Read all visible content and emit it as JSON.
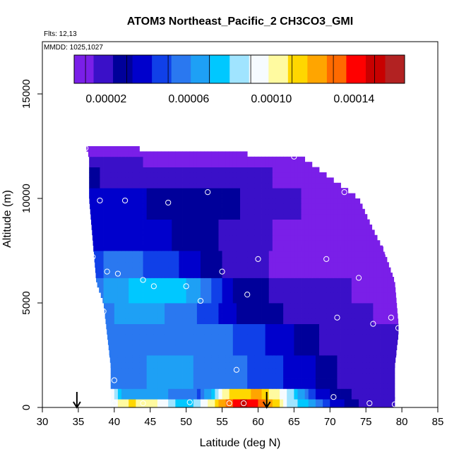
{
  "header": {
    "title": "ATOM3 Northeast_Pacific_2 CH3CO3_GMI",
    "flights": "Flts: 12,13",
    "dates": "MMDD: 1025,1027"
  },
  "colors": {
    "palette": [
      "#7a1fe8",
      "#3a10c8",
      "#00009a",
      "#0000cc",
      "#1040e8",
      "#2a78f0",
      "#1ea0f5",
      "#00c8ff",
      "#a0e4ff",
      "#f6fbff",
      "#fffaa0",
      "#ffd700",
      "#ffa500",
      "#ff6a00",
      "#ff0000",
      "#c80000",
      "#b22222"
    ],
    "arrow": "#000000",
    "marker": "#ffffff"
  },
  "chart_data": {
    "type": "heatmap",
    "title": "ATOM3 Northeast_Pacific_2 CH3CO3_GMI",
    "xlabel": "Latitude (deg N)",
    "ylabel": "Altitude (m)",
    "xlim": [
      30,
      85
    ],
    "ylim": [
      0,
      17500
    ],
    "xticks": [
      "30",
      "35",
      "40",
      "45",
      "50",
      "55",
      "60",
      "65",
      "70",
      "75",
      "80",
      "85"
    ],
    "yticks": [
      "0",
      "5000",
      "10000",
      "15000"
    ],
    "colorbar": {
      "range": [
        4.5e-06,
        0.0001645
      ],
      "ticks": [
        "0.00002",
        "0.00006",
        "0.00010",
        "0.00014"
      ],
      "tick_values": [
        2e-05,
        6e-05,
        0.0001,
        0.00014
      ]
    },
    "arrows_latitude": [
      34.8,
      61.2
    ],
    "observations": [
      {
        "lat": 36.0,
        "alt": 12400
      },
      {
        "lat": 65.0,
        "alt": 12000
      },
      {
        "lat": 38.0,
        "alt": 9900
      },
      {
        "lat": 41.5,
        "alt": 9900
      },
      {
        "lat": 47.5,
        "alt": 9800
      },
      {
        "lat": 53.0,
        "alt": 10300
      },
      {
        "lat": 72.0,
        "alt": 10300
      },
      {
        "lat": 37.0,
        "alt": 7200
      },
      {
        "lat": 60.0,
        "alt": 7100
      },
      {
        "lat": 69.5,
        "alt": 7100
      },
      {
        "lat": 78.0,
        "alt": 7400
      },
      {
        "lat": 39.0,
        "alt": 6500
      },
      {
        "lat": 40.5,
        "alt": 6400
      },
      {
        "lat": 55.0,
        "alt": 6500
      },
      {
        "lat": 44.0,
        "alt": 6100
      },
      {
        "lat": 74.0,
        "alt": 6200
      },
      {
        "lat": 45.5,
        "alt": 5800
      },
      {
        "lat": 50.0,
        "alt": 5800
      },
      {
        "lat": 58.5,
        "alt": 5400
      },
      {
        "lat": 52.0,
        "alt": 5100
      },
      {
        "lat": 38.5,
        "alt": 4600
      },
      {
        "lat": 71.0,
        "alt": 4300
      },
      {
        "lat": 78.5,
        "alt": 4300
      },
      {
        "lat": 76.0,
        "alt": 4000
      },
      {
        "lat": 79.5,
        "alt": 3800
      },
      {
        "lat": 57.0,
        "alt": 1800
      },
      {
        "lat": 40.0,
        "alt": 1300
      },
      {
        "lat": 70.5,
        "alt": 500
      },
      {
        "lat": 50.5,
        "alt": 250
      },
      {
        "lat": 40.0,
        "alt": 200
      },
      {
        "lat": 44.0,
        "alt": 200
      },
      {
        "lat": 56.0,
        "alt": 200
      },
      {
        "lat": 58.0,
        "alt": 200
      },
      {
        "lat": 75.5,
        "alt": 200
      },
      {
        "lat": 79.0,
        "alt": 150
      }
    ],
    "upper_edge": [
      [
        36,
        12500
      ],
      [
        65,
        12500
      ],
      [
        66,
        12000
      ],
      [
        68,
        11500
      ],
      [
        70,
        11000
      ],
      [
        72,
        10500
      ],
      [
        74,
        10000
      ],
      [
        76,
        8500
      ],
      [
        77.5,
        7500
      ],
      [
        79,
        6000
      ],
      [
        79.5,
        4000
      ],
      [
        79.5,
        3500
      ],
      [
        79,
        2000
      ],
      [
        79,
        0
      ]
    ],
    "lower_edge": [
      [
        36,
        12500
      ],
      [
        36.5,
        12000
      ],
      [
        36.5,
        10000
      ],
      [
        37,
        8000
      ],
      [
        37.5,
        6000
      ],
      [
        38.5,
        5000
      ],
      [
        39,
        3500
      ],
      [
        39.5,
        2000
      ],
      [
        39.5,
        1000
      ],
      [
        39.5,
        0
      ]
    ],
    "bands": [
      {
        "alt": [
          0,
          400
        ],
        "by_lat": [
          [
            39.5,
            9e-05
          ],
          [
            42,
            0.00011
          ],
          [
            46,
            0.0001
          ],
          [
            50,
            7e-05
          ],
          [
            53,
            0.0001
          ],
          [
            55,
            0.00012
          ],
          [
            58,
            0.00015
          ],
          [
            62,
            0.00012
          ],
          [
            64,
            9e-05
          ],
          [
            67,
            7e-05
          ],
          [
            70,
            4e-05
          ],
          [
            75,
            2e-05
          ],
          [
            79,
            1.5e-05
          ]
        ]
      },
      {
        "alt": [
          400,
          900
        ],
        "by_lat": [
          [
            39.5,
            0.0001
          ],
          [
            41,
            7e-05
          ],
          [
            48,
            6e-05
          ],
          [
            52,
            5e-05
          ],
          [
            56,
            0.00011
          ],
          [
            60,
            0.00012
          ],
          [
            64,
            9e-05
          ],
          [
            68,
            4e-05
          ],
          [
            72,
            2.5e-05
          ],
          [
            79,
            1.5e-05
          ]
        ]
      },
      {
        "alt": [
          900,
          2500
        ],
        "by_lat": [
          [
            39.5,
            6e-05
          ],
          [
            50,
            6.2e-05
          ],
          [
            60,
            5e-05
          ],
          [
            67,
            3.5e-05
          ],
          [
            72,
            2e-05
          ],
          [
            79,
            1.5e-05
          ]
        ]
      },
      {
        "alt": [
          2500,
          4000
        ],
        "by_lat": [
          [
            39,
            6e-05
          ],
          [
            50,
            5.8e-05
          ],
          [
            58,
            5e-05
          ],
          [
            64,
            3.5e-05
          ],
          [
            70,
            2e-05
          ],
          [
            79,
            1.5e-05
          ]
        ]
      },
      {
        "alt": [
          4000,
          5000
        ],
        "by_lat": [
          [
            38.5,
            6e-05
          ],
          [
            45,
            6.5e-05
          ],
          [
            52,
            5e-05
          ],
          [
            58,
            3e-05
          ],
          [
            66,
            2e-05
          ],
          [
            79,
            1.2e-05
          ]
        ]
      },
      {
        "alt": [
          5000,
          6200
        ],
        "by_lat": [
          [
            37.5,
            5.8e-05
          ],
          [
            44,
            7.5e-05
          ],
          [
            48,
            8e-05
          ],
          [
            52,
            6e-05
          ],
          [
            57,
            3e-05
          ],
          [
            64,
            2e-05
          ],
          [
            79,
            1e-05
          ]
        ]
      },
      {
        "alt": [
          6200,
          7500
        ],
        "by_lat": [
          [
            37,
            5e-05
          ],
          [
            42,
            5.5e-05
          ],
          [
            50,
            4e-05
          ],
          [
            56,
            2e-05
          ],
          [
            63,
            1.2e-05
          ],
          [
            77.5,
            8e-06
          ]
        ]
      },
      {
        "alt": [
          7500,
          9000
        ],
        "by_lat": [
          [
            37,
            4.2e-05
          ],
          [
            44,
            3.8e-05
          ],
          [
            50,
            3e-05
          ],
          [
            58,
            1.8e-05
          ],
          [
            66,
            1e-05
          ],
          [
            76,
            7e-06
          ]
        ]
      },
      {
        "alt": [
          9000,
          10500
        ],
        "by_lat": [
          [
            36.5,
            3.8e-05
          ],
          [
            42,
            3.5e-05
          ],
          [
            48,
            3e-05
          ],
          [
            54,
            2.8e-05
          ],
          [
            60,
            2e-05
          ],
          [
            66,
            1.4e-05
          ],
          [
            74,
            1e-05
          ]
        ]
      },
      {
        "alt": [
          10500,
          11500
        ],
        "by_lat": [
          [
            36.5,
            2.4e-05
          ],
          [
            45,
            2e-05
          ],
          [
            55,
            1.8e-05
          ],
          [
            62,
            1.4e-05
          ],
          [
            70,
            1e-05
          ]
        ]
      },
      {
        "alt": [
          11500,
          12000
        ],
        "by_lat": [
          [
            36.5,
            1.5e-05
          ],
          [
            50,
            1.3e-05
          ],
          [
            66,
            1e-05
          ]
        ]
      },
      {
        "alt": [
          12000,
          12500
        ],
        "by_lat": [
          [
            36,
            8e-06
          ],
          [
            50,
            7e-06
          ],
          [
            65,
            6e-06
          ]
        ]
      }
    ]
  }
}
